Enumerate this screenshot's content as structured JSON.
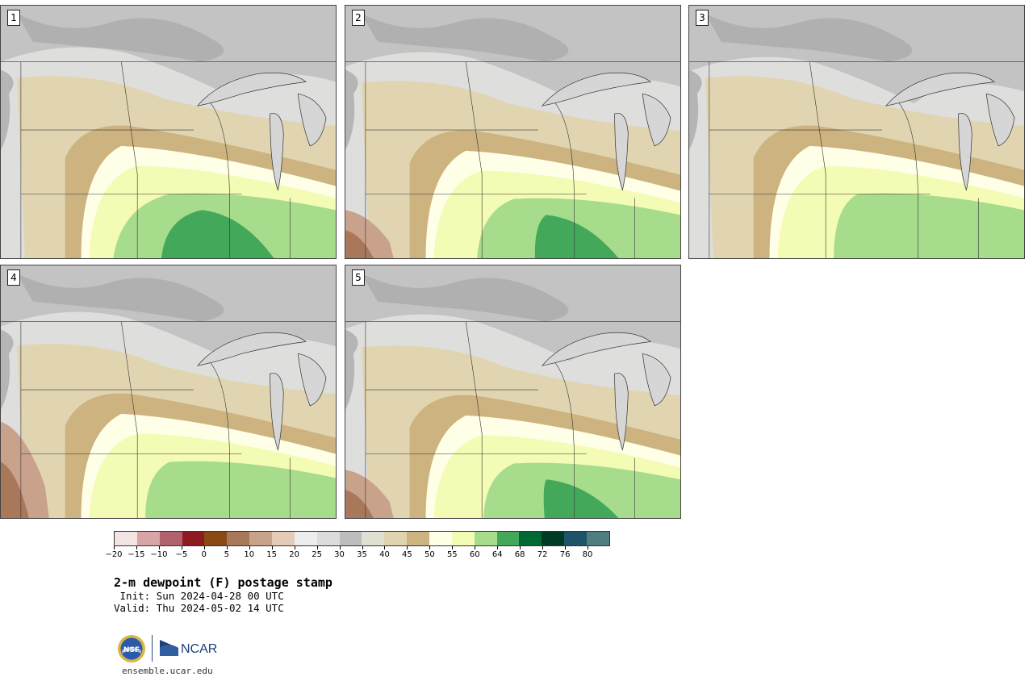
{
  "title": "2-m dewpoint (F) postage stamp",
  "init_line": " Init: Sun 2024-04-28 00 UTC",
  "valid_line": "Valid: Thu 2024-05-02 14 UTC",
  "footer": {
    "url": "ensemble.ucar.edu",
    "ncar_text": "NCAR",
    "nsf_text": "NSF"
  },
  "panels": [
    {
      "label": "1",
      "dry": 0.0,
      "moist": 0.0,
      "green": 1.0,
      "brown": 0
    },
    {
      "label": "2",
      "dry": 0.1,
      "moist": 0.15,
      "green": 0.7,
      "brown": 1
    },
    {
      "label": "3",
      "dry": 0.2,
      "moist": 0.0,
      "green": 0.5,
      "brown": 0
    },
    {
      "label": "4",
      "dry": 0.1,
      "moist": 0.25,
      "green": 0.5,
      "brown": 2
    },
    {
      "label": "5",
      "dry": 0.15,
      "moist": 0.3,
      "green": 0.6,
      "brown": 1
    }
  ],
  "colorbar": {
    "colors": [
      "#f3e3e3",
      "#d7a5a5",
      "#b0616b",
      "#8e1a22",
      "#8a4a14",
      "#a9775a",
      "#c9a28c",
      "#e4cbb8",
      "#ededed",
      "#dcdcdc",
      "#bdbdbd",
      "#e0e0d2",
      "#e0d3ae",
      "#cdb37f",
      "#fffee6",
      "#f4fbb4",
      "#a6dc8c",
      "#43a85a",
      "#006835",
      "#003a22",
      "#1c5468",
      "#4f7d80"
    ],
    "tick_labels": [
      "−20",
      "−15",
      "−10",
      "−5",
      "0",
      "5",
      "10",
      "15",
      "20",
      "25",
      "30",
      "35",
      "40",
      "45",
      "50",
      "55",
      "60",
      "64",
      "68",
      "72",
      "76",
      "80"
    ]
  }
}
